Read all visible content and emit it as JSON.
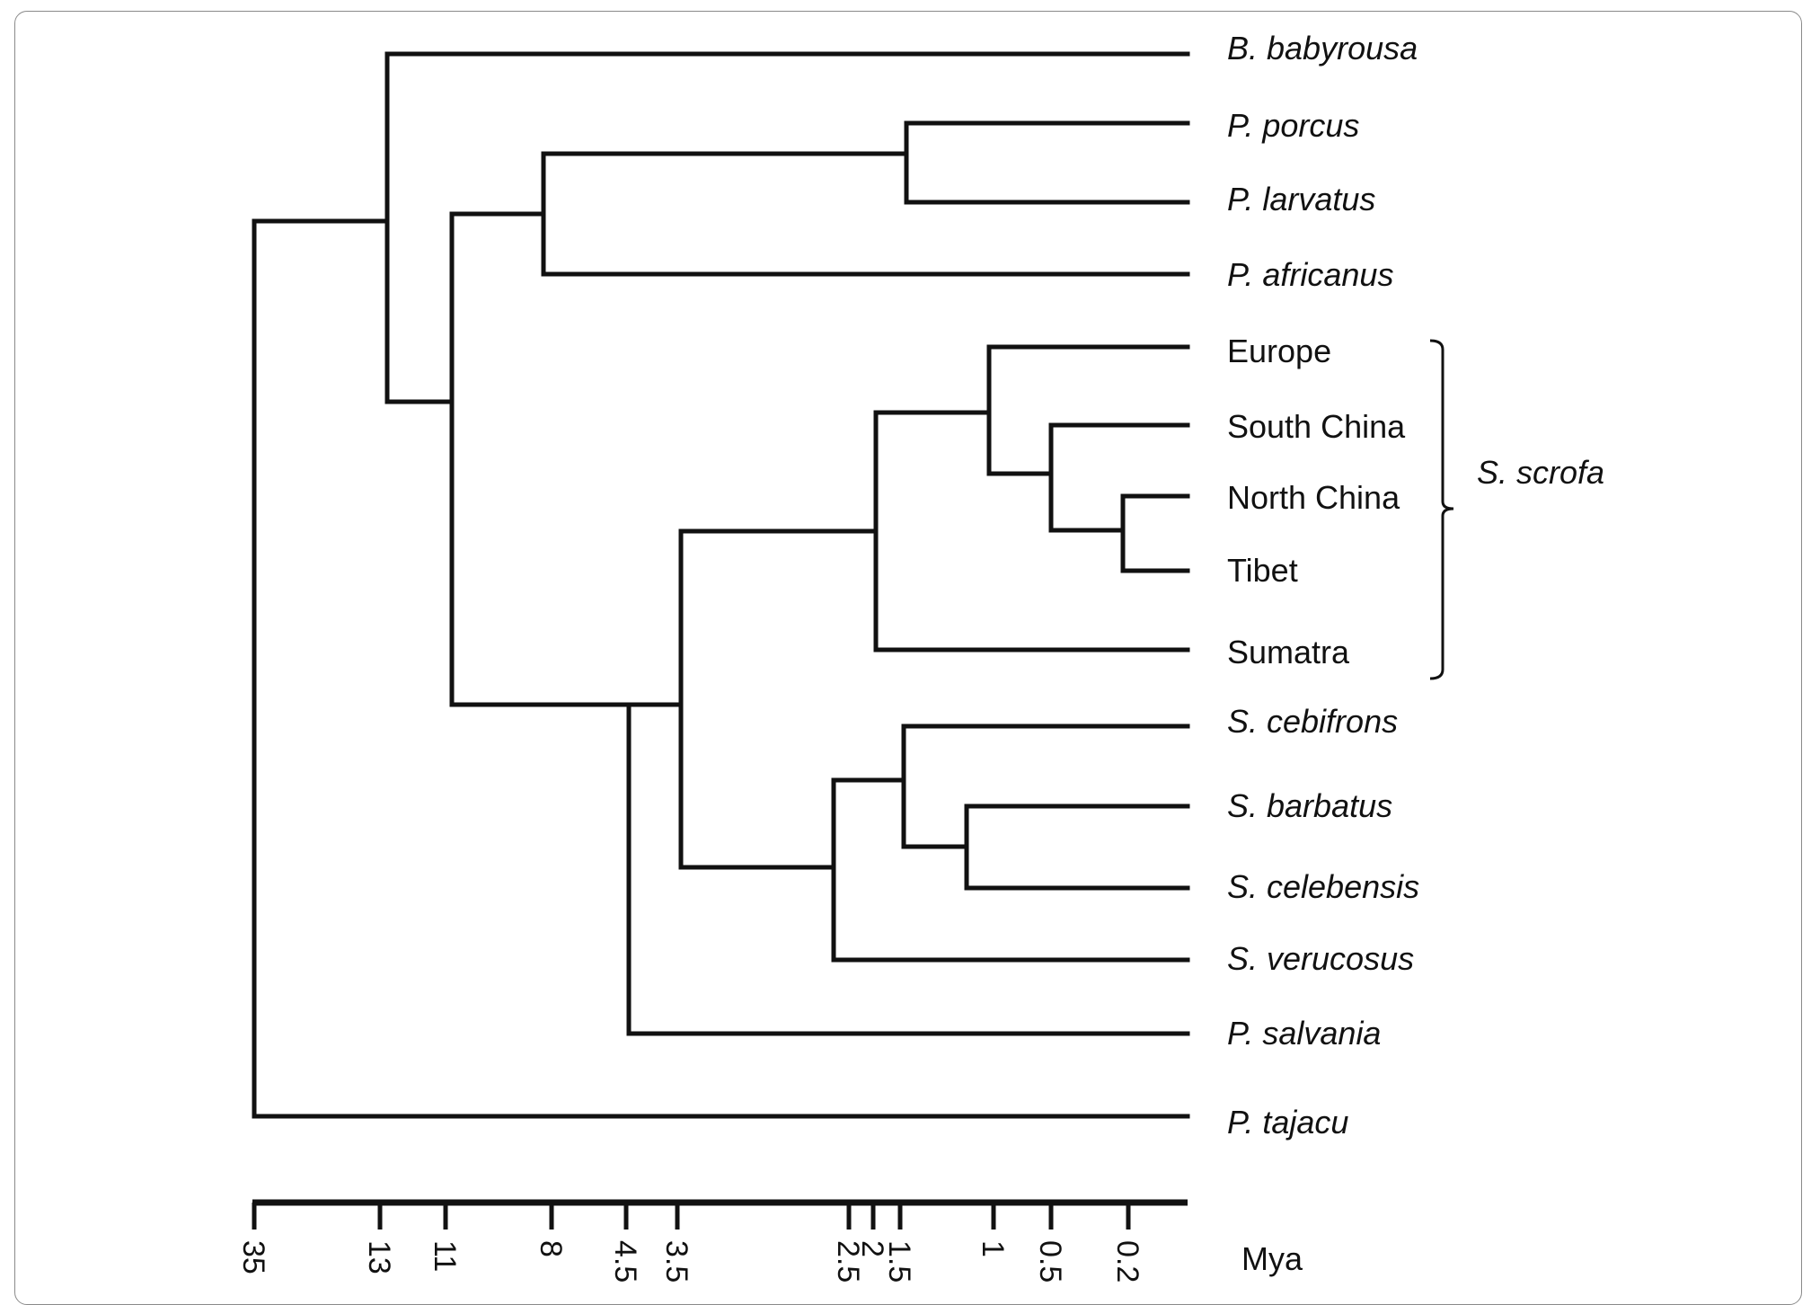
{
  "taxa": [
    {
      "id": "b_babyrousa",
      "label": "B. babyrousa",
      "italic": true
    },
    {
      "id": "p_porcus",
      "label": "P. porcus",
      "italic": true
    },
    {
      "id": "p_larvatus",
      "label": "P. larvatus",
      "italic": true
    },
    {
      "id": "p_africanus",
      "label": "P. africanus",
      "italic": true
    },
    {
      "id": "europe",
      "label": "Europe",
      "italic": false
    },
    {
      "id": "south_china",
      "label": "South China",
      "italic": false
    },
    {
      "id": "north_china",
      "label": "North China",
      "italic": false
    },
    {
      "id": "tibet",
      "label": "Tibet",
      "italic": false
    },
    {
      "id": "sumatra",
      "label": "Sumatra",
      "italic": false
    },
    {
      "id": "s_cebifrons",
      "label": "S. cebifrons",
      "italic": true
    },
    {
      "id": "s_barbatus",
      "label": "S. barbatus",
      "italic": true
    },
    {
      "id": "s_celebensis",
      "label": "S. celebensis",
      "italic": true
    },
    {
      "id": "s_verucosus",
      "label": "S. verucosus",
      "italic": true
    },
    {
      "id": "p_salvania",
      "label": "P. salvania",
      "italic": true
    },
    {
      "id": "p_tajacu",
      "label": "P. tajacu",
      "italic": true
    }
  ],
  "group": {
    "label": "S. scrofa",
    "members": [
      "europe",
      "south_china",
      "north_china",
      "tibet",
      "sumatra"
    ]
  },
  "axis": {
    "label": "Mya",
    "ticks": [
      "35",
      "13",
      "11",
      "8",
      "4.5",
      "3.5",
      "2.5",
      "2",
      "1.5",
      "1",
      "0.5",
      "0.2"
    ]
  }
}
